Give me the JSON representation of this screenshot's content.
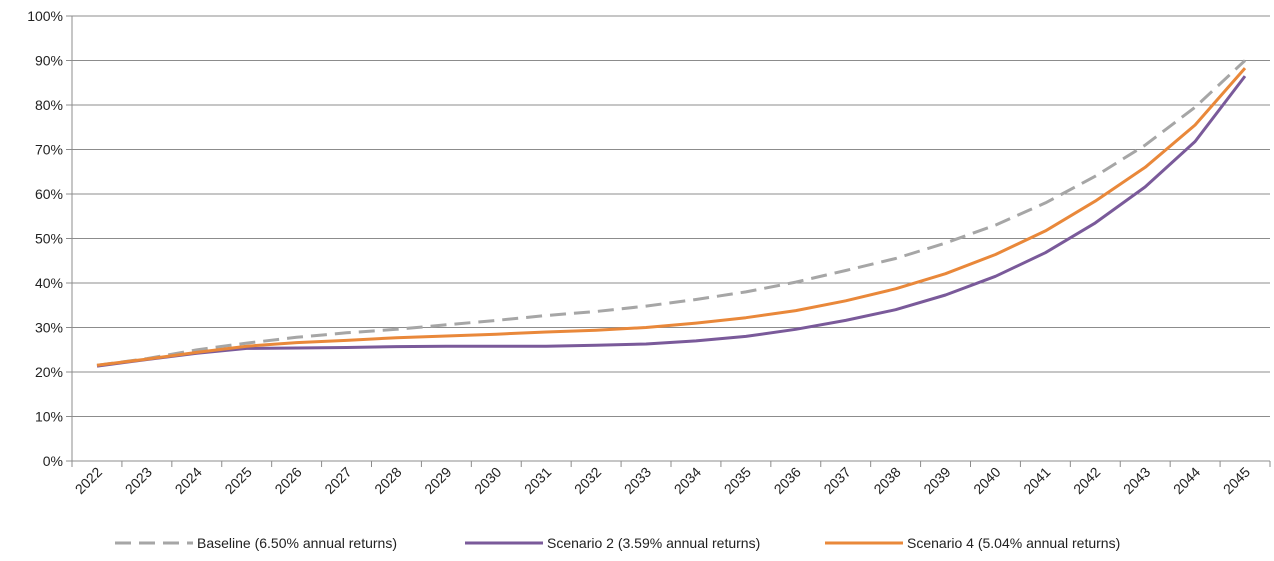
{
  "chart_data": {
    "type": "line",
    "title": "",
    "xlabel": "",
    "ylabel": "",
    "categories": [
      "2022",
      "2023",
      "2024",
      "2025",
      "2026",
      "2027",
      "2028",
      "2029",
      "2030",
      "2031",
      "2032",
      "2033",
      "2034",
      "2035",
      "2036",
      "2037",
      "2038",
      "2039",
      "2040",
      "2041",
      "2042",
      "2043",
      "2044",
      "2045"
    ],
    "y_ticks": [
      "0%",
      "10%",
      "20%",
      "30%",
      "40%",
      "50%",
      "60%",
      "70%",
      "80%",
      "90%",
      "100%"
    ],
    "ylim": [
      0,
      100
    ],
    "y_unit": "%",
    "grid": "horizontal",
    "legend_position": "bottom",
    "series": [
      {
        "name": "Baseline (6.50% annual returns)",
        "color": "#a6a6a6",
        "style": "dashed",
        "values": [
          21.5,
          23,
          25,
          26.5,
          27.8,
          28.8,
          29.6,
          30.6,
          31.6,
          32.7,
          33.6,
          34.8,
          36.3,
          38,
          40.2,
          42.8,
          45.5,
          49,
          53,
          58,
          64,
          71,
          79.5,
          90
        ]
      },
      {
        "name": "Scenario 2 (3.59% annual returns)",
        "color": "#7a5a9a",
        "style": "solid",
        "values": [
          21.3,
          22.8,
          24.2,
          25.3,
          25.4,
          25.5,
          25.7,
          25.8,
          25.8,
          25.8,
          26,
          26.3,
          27,
          28,
          29.6,
          31.6,
          34,
          37.3,
          41.5,
          46.8,
          53.5,
          61.6,
          71.8,
          86.5
        ]
      },
      {
        "name": "Scenario 4 (5.04% annual returns)",
        "color": "#e9883a",
        "style": "solid",
        "values": [
          21.5,
          22.9,
          24.4,
          25.8,
          26.6,
          27.1,
          27.7,
          28.1,
          28.5,
          29,
          29.4,
          30,
          31,
          32.2,
          33.8,
          36,
          38.7,
          42.1,
          46.4,
          51.7,
          58.4,
          66,
          75.5,
          88.3
        ]
      }
    ]
  }
}
